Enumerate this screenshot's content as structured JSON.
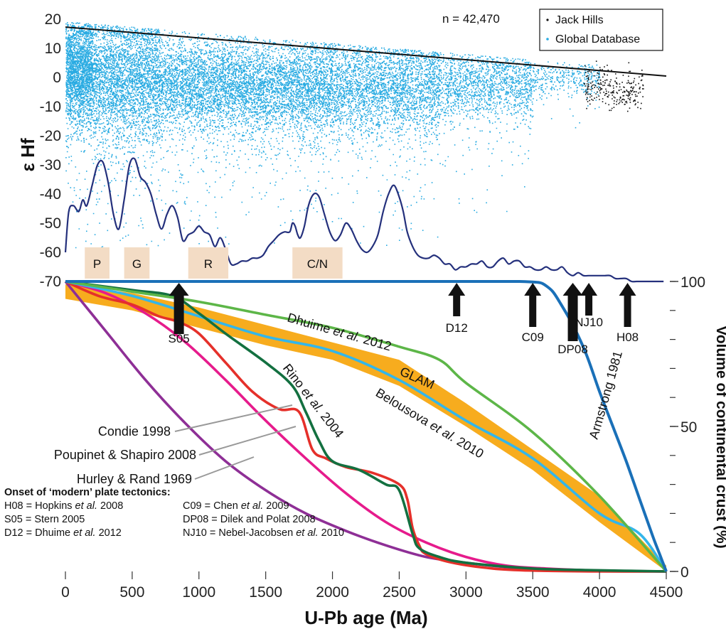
{
  "chart_data": {
    "type": "scatter",
    "xlabel": "U-Pb age (Ma)",
    "ylabel_left": "ε Hf",
    "ylabel_right": "Volume of continental crust (%)",
    "x_range": [
      0,
      4500
    ],
    "x_ticks": [
      "0",
      "500",
      "1000",
      "1500",
      "2000",
      "2500",
      "3000",
      "3500",
      "4000",
      "4500"
    ],
    "y_left_range": [
      -70,
      20
    ],
    "y_left_ticks": [
      "20",
      "10",
      "0",
      "-10",
      "-20",
      "-30",
      "-40",
      "-50",
      "-60",
      "-70"
    ],
    "y_right_range": [
      0,
      100
    ],
    "y_right_ticks": [
      "100",
      "50",
      "0"
    ],
    "n_label": "n = 42,470",
    "legend": [
      {
        "name": "Jack Hills",
        "color": "#111111"
      },
      {
        "name": "Global Database",
        "color": "#29abe2"
      }
    ],
    "reference_line": {
      "x": [
        0,
        4500
      ],
      "y": [
        17.3,
        0.5
      ]
    },
    "global_density": [
      {
        "x": [
          0,
          200
        ],
        "ycenter": 3,
        "spread": 9,
        "n": 2200
      },
      {
        "x": [
          200,
          700
        ],
        "ycenter": 0,
        "spread": 11,
        "n": 3200
      },
      {
        "x": [
          700,
          1300
        ],
        "ycenter": -2,
        "spread": 8,
        "n": 2800
      },
      {
        "x": [
          1300,
          2000
        ],
        "ycenter": -3,
        "spread": 8,
        "n": 3200
      },
      {
        "x": [
          2000,
          2800
        ],
        "ycenter": -3,
        "spread": 8,
        "n": 2900
      },
      {
        "x": [
          2800,
          3500
        ],
        "ycenter": -2,
        "spread": 6,
        "n": 1500
      },
      {
        "x": [
          3500,
          4000
        ],
        "ycenter": 0,
        "spread": 3,
        "n": 350
      }
    ],
    "jack_hills_cluster": {
      "x": [
        3880,
        4330
      ],
      "ycenter": -4,
      "spread": 3.5,
      "n": 260
    },
    "histogram": {
      "x": [
        0,
        25,
        60,
        100,
        130,
        160,
        200,
        240,
        280,
        320,
        360,
        400,
        440,
        480,
        520,
        560,
        600,
        640,
        680,
        720,
        760,
        800,
        840,
        880,
        920,
        960,
        1000,
        1040,
        1080,
        1120,
        1160,
        1200,
        1240,
        1280,
        1320,
        1360,
        1400,
        1440,
        1480,
        1520,
        1560,
        1600,
        1640,
        1680,
        1700,
        1720,
        1740,
        1760,
        1790,
        1820,
        1860,
        1900,
        1940,
        1980,
        2020,
        2060,
        2100,
        2140,
        2180,
        2220,
        2260,
        2300,
        2340,
        2380,
        2420,
        2460,
        2500,
        2530,
        2560,
        2600,
        2640,
        2680,
        2720,
        2760,
        2800,
        2840,
        2880,
        2920,
        2960,
        3000,
        3040,
        3080,
        3120,
        3160,
        3200,
        3240,
        3280,
        3320,
        3360,
        3400,
        3440,
        3480,
        3520,
        3560,
        3600,
        3640,
        3680,
        3720,
        3760,
        3800,
        3840,
        3880,
        3920,
        3960,
        4000,
        4040,
        4080,
        4120,
        4160,
        4200,
        4240,
        4280,
        4320,
        4360,
        4400,
        4440,
        4480
      ],
      "y": [
        -60,
        -46,
        -44,
        -46,
        -42,
        -44,
        -37,
        -30,
        -29,
        -36,
        -47,
        -52,
        -42,
        -30,
        -28,
        -34,
        -36,
        -40,
        -47,
        -52,
        -47,
        -44,
        -48,
        -56,
        -54,
        -53,
        -51,
        -53,
        -54,
        -58,
        -55,
        -59,
        -64,
        -64,
        -63,
        -63,
        -62,
        -62,
        -61,
        -58,
        -56,
        -54,
        -53,
        -53,
        -50,
        -51,
        -54,
        -55,
        -51,
        -44,
        -40,
        -41,
        -47,
        -53,
        -56,
        -54,
        -50,
        -52,
        -56,
        -59,
        -60,
        -58,
        -54,
        -46,
        -40,
        -37,
        -41,
        -46,
        -53,
        -58,
        -61,
        -62,
        -62,
        -61,
        -62,
        -64,
        -64,
        -66,
        -65,
        -65,
        -64,
        -64,
        -63,
        -65,
        -65,
        -63,
        -62,
        -64,
        -63,
        -63,
        -65,
        -65,
        -66,
        -66,
        -65,
        -66,
        -66,
        -65,
        -67,
        -68,
        -67,
        -68,
        -68,
        -68,
        -68,
        -68,
        -68,
        -69,
        -69,
        -69,
        -70,
        -70,
        -70,
        -70,
        -70,
        -70,
        -70
      ]
    },
    "boxes": [
      {
        "label": "P",
        "x": [
          145,
          330
        ]
      },
      {
        "label": "G",
        "x": [
          440,
          630
        ]
      },
      {
        "label": "R",
        "x": [
          920,
          1220
        ]
      },
      {
        "label": "C/N",
        "x": [
          1700,
          2075
        ]
      }
    ],
    "crust_curves": [
      {
        "name": "Armstrong 1981",
        "color": "#1a70b8",
        "x": [
          0,
          1000,
          2000,
          3000,
          3300,
          3400,
          3500,
          3560,
          3600,
          3650,
          3700,
          3800,
          3900,
          4000,
          4100,
          4200,
          4300,
          4400,
          4450,
          4500
        ],
        "y": [
          100,
          100,
          100,
          100,
          100,
          100,
          99.8,
          99.5,
          98.5,
          96.5,
          93,
          85,
          75,
          62,
          50,
          38,
          25,
          12,
          6,
          0
        ]
      },
      {
        "name": "Dhuime et al. 2012",
        "color": "#5db648",
        "x": [
          0,
          500,
          1000,
          1500,
          2000,
          2500,
          2800,
          3000,
          3500,
          4000,
          4500
        ],
        "y": [
          100,
          96.5,
          93,
          88.5,
          84,
          77.5,
          73,
          65,
          48,
          26,
          0
        ]
      },
      {
        "name": "Belousova et al. 2010",
        "color": "#33b6ea",
        "x": [
          0,
          500,
          1000,
          1500,
          2000,
          2500,
          3000,
          3500,
          4000,
          4300,
          4500
        ],
        "y": [
          100,
          95,
          88,
          81,
          76,
          66,
          52,
          39,
          20,
          13,
          0
        ]
      },
      {
        "name": "Rino et al. 2004",
        "color": "#137040",
        "x": [
          0,
          500,
          800,
          1000,
          1200,
          1500,
          1700,
          1800,
          1900,
          2000,
          2200,
          2400,
          2500,
          2600,
          2650,
          2800,
          3000,
          3500,
          4000,
          4500
        ],
        "y": [
          100,
          97,
          95,
          89,
          82,
          72,
          64,
          55,
          45,
          38,
          35,
          30,
          28,
          13,
          8,
          5,
          3,
          1,
          0.4,
          0
        ]
      },
      {
        "name": "Condie 1998",
        "color": "#e5302a",
        "x": [
          0,
          250,
          500,
          700,
          850,
          1000,
          1200,
          1400,
          1600,
          1750,
          1850,
          1950,
          2100,
          2300,
          2500,
          2560,
          2600,
          2650,
          2700,
          2900,
          3200,
          3500,
          4000,
          4500
        ],
        "y": [
          100,
          95,
          92,
          88,
          86,
          82,
          72,
          62,
          56,
          55,
          42,
          39,
          36,
          34,
          30,
          25,
          15,
          9,
          6,
          3,
          1,
          0.3,
          0,
          0
        ]
      },
      {
        "name": "Poupinet & Shapiro 2008",
        "color": "#e61b8c",
        "x": [
          0,
          300,
          600,
          900,
          1200,
          1500,
          1800,
          2100,
          2400,
          2700,
          3000,
          3300,
          3600,
          4000,
          4500
        ],
        "y": [
          100,
          96,
          89,
          79,
          66,
          52,
          39,
          27,
          17,
          10,
          5,
          2,
          1,
          0.3,
          0
        ]
      },
      {
        "name": "Hurley & Rand 1969",
        "color": "#8e2f96",
        "x": [
          0,
          300,
          600,
          900,
          1200,
          1500,
          1800,
          2100,
          2400,
          2700,
          3000,
          3300,
          3600,
          4000,
          4500
        ],
        "y": [
          100,
          83,
          66,
          51,
          38,
          28,
          20,
          14,
          9,
          5,
          3,
          1.5,
          0.6,
          0.2,
          0
        ]
      }
    ],
    "glam_band": {
      "name": "GLAM",
      "color": "#f7ac1e",
      "x": [
        0,
        500,
        1000,
        1500,
        2000,
        2500,
        3000,
        3500,
        4000,
        4500
      ],
      "upper": [
        99,
        96,
        91,
        85,
        79,
        73,
        58,
        42,
        26,
        2
      ],
      "lower": [
        94,
        90,
        84,
        78,
        73,
        64,
        50,
        35,
        17,
        0
      ]
    },
    "arrows": [
      {
        "label": "S05",
        "x": 850,
        "thick": true
      },
      {
        "label": "D12",
        "x": 2930,
        "thick": false
      },
      {
        "label": "C09",
        "x": 3500,
        "thick": false
      },
      {
        "label": "DP08",
        "x": 3800,
        "thick": true
      },
      {
        "label": "NJ10",
        "x": 3920,
        "thick": false
      },
      {
        "label": "H08",
        "x": 4210,
        "thick": false
      }
    ],
    "pointer_labels": [
      {
        "name": "Condie 1998",
        "target_x": 1700
      },
      {
        "name": "Poupinet & Shapiro 2008",
        "target_x": 1720
      },
      {
        "name": "Hurley & Rand 1969",
        "target_x": 1430
      }
    ],
    "key": {
      "title": "Onset of ‘modern’ plate tectonics:",
      "rows": [
        [
          "H08 = Hopkins et al. 2008",
          "C09 = Chen et al. 2009"
        ],
        [
          "S05 = Stern 2005",
          "DP08 = Dilek and Polat 2008"
        ],
        [
          "D12 = Dhuime et al. 2012",
          "NJ10 = Nebel-Jacobsen et al. 2010"
        ]
      ]
    }
  }
}
